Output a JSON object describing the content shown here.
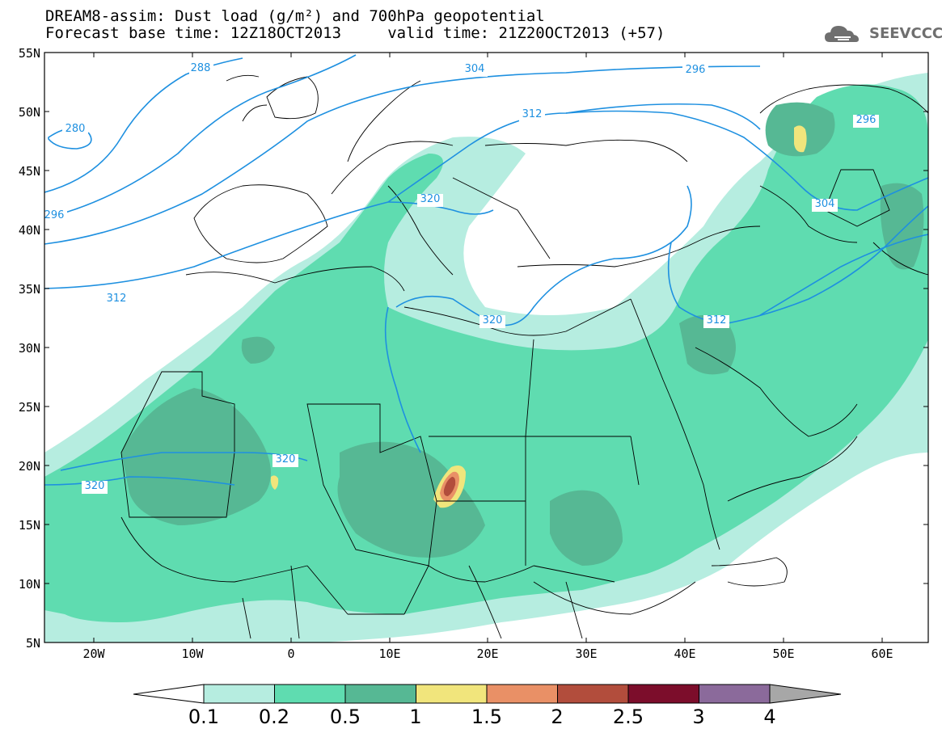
{
  "header": {
    "title_line1": "DREAM8-assim: Dust load (g/m²) and 700hPa geopotential",
    "title_line2": "Forecast base time: 12Z18OCT2013     valid time: 21Z20OCT2013 (+57)",
    "logo_text": "SEEVCCC"
  },
  "map": {
    "lat_labels": [
      "55N",
      "50N",
      "45N",
      "40N",
      "35N",
      "30N",
      "25N",
      "20N",
      "15N",
      "10N",
      "5N"
    ],
    "lon_labels": [
      "20W",
      "10W",
      "0",
      "10E",
      "20E",
      "30E",
      "40E",
      "50E",
      "60E"
    ],
    "contour_labels": [
      "288",
      "304",
      "296",
      "280",
      "312",
      "296",
      "320",
      "304",
      "296",
      "312",
      "320",
      "312",
      "320",
      "320"
    ]
  },
  "colorbar": {
    "labels": [
      "0.1",
      "0.2",
      "0.5",
      "1",
      "1.5",
      "2",
      "2.5",
      "3",
      "4"
    ],
    "colors": {
      "under": "#ffffff",
      "bins": [
        "#b6ede0",
        "#5fdcb0",
        "#56b894",
        "#f1e57c",
        "#e99066",
        "#b24d3c",
        "#7c0d2b",
        "#8b6a9b"
      ],
      "over": "#a7a7a7"
    }
  },
  "colors": {
    "geopotential_contour": "#1e90e0",
    "dust_0_1": "#b6ede0",
    "dust_0_2": "#5fdcb0",
    "dust_0_5": "#56b894",
    "dust_1": "#f1e57c",
    "dust_1_5": "#e99066",
    "dust_2": "#b24d3c"
  }
}
